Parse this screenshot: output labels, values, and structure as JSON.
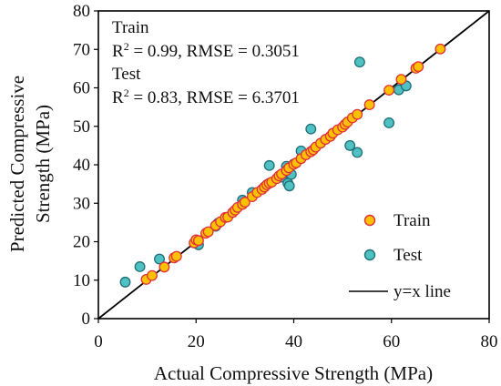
{
  "chart_data": {
    "type": "scatter",
    "xlabel": "Actual Compressive Strength (MPa)",
    "ylabel_lines": [
      "Predicted Compressive",
      "Strength (MPa)"
    ],
    "xlim": [
      0,
      80
    ],
    "ylim": [
      0,
      80
    ],
    "xticks": [
      0,
      20,
      40,
      60,
      80
    ],
    "yticks": [
      0,
      10,
      20,
      30,
      40,
      50,
      60,
      70,
      80
    ],
    "grid": false,
    "legend_position": "bottom-right",
    "annotations": {
      "train_title": "Train",
      "train_r2_label": "R",
      "train_r2_sup": "2",
      "train_stats": " = 0.99, RMSE = 0.3051",
      "test_title": "Test",
      "test_r2_label": "R",
      "test_r2_sup": "2",
      "test_stats": " = 0.83, RMSE = 6.3701"
    },
    "series": [
      {
        "name": "Train",
        "color": "#FFC000",
        "edge_color": "#E0303A",
        "points": [
          [
            9.8,
            10.2
          ],
          [
            11,
            11.2
          ],
          [
            13.5,
            13.4
          ],
          [
            15.5,
            15.8
          ],
          [
            16,
            16.2
          ],
          [
            19.6,
            19.7
          ],
          [
            20,
            20.5
          ],
          [
            20.5,
            20.3
          ],
          [
            22,
            22.2
          ],
          [
            22.5,
            22.6
          ],
          [
            24,
            24.2
          ],
          [
            25,
            25.2
          ],
          [
            26,
            26.3
          ],
          [
            26.5,
            26.4
          ],
          [
            27.5,
            27.6
          ],
          [
            28,
            28.2
          ],
          [
            28.5,
            28.9
          ],
          [
            29.5,
            29.7
          ],
          [
            30,
            30.3
          ],
          [
            31.5,
            31.7
          ],
          [
            32.5,
            32.8
          ],
          [
            33.5,
            33.6
          ],
          [
            34,
            34.2
          ],
          [
            34.5,
            34.8
          ],
          [
            35,
            35.2
          ],
          [
            35.5,
            35.5
          ],
          [
            36.5,
            36.4
          ],
          [
            37,
            37.1
          ],
          [
            37.5,
            37.6
          ],
          [
            38.5,
            38.5
          ],
          [
            39,
            39.2
          ],
          [
            40,
            40.1
          ],
          [
            40.5,
            40.5
          ],
          [
            41.5,
            41.6
          ],
          [
            42.5,
            42.6
          ],
          [
            43.5,
            43.4
          ],
          [
            44,
            43.9
          ],
          [
            44.5,
            44.6
          ],
          [
            45.5,
            45.6
          ],
          [
            46.5,
            46.6
          ],
          [
            47.5,
            47.4
          ],
          [
            48,
            48.2
          ],
          [
            49,
            49.1
          ],
          [
            50,
            49.8
          ],
          [
            50.5,
            50.5
          ],
          [
            51,
            51.1
          ],
          [
            52,
            52.2
          ],
          [
            53,
            53.1
          ],
          [
            55.5,
            55.6
          ],
          [
            59.5,
            59.4
          ],
          [
            62,
            62.2
          ],
          [
            65,
            65.1
          ],
          [
            65.5,
            65.5
          ],
          [
            70,
            70.1
          ]
        ]
      },
      {
        "name": "Test",
        "color": "#4FC1C3",
        "edge_color": "#1F6F78",
        "points": [
          [
            5.5,
            9.5
          ],
          [
            8.5,
            13.5
          ],
          [
            12.5,
            15.5
          ],
          [
            20.5,
            19.2
          ],
          [
            24,
            24
          ],
          [
            24.5,
            24.8
          ],
          [
            29.5,
            30.8
          ],
          [
            31.5,
            32.8
          ],
          [
            35,
            39.8
          ],
          [
            37.5,
            36.8
          ],
          [
            38.5,
            38.2
          ],
          [
            38.5,
            39.6
          ],
          [
            38.8,
            35.2
          ],
          [
            39.1,
            34.5
          ],
          [
            39.5,
            37.5
          ],
          [
            40,
            40.2
          ],
          [
            41.5,
            43.6
          ],
          [
            43.5,
            49.3
          ],
          [
            51.5,
            45
          ],
          [
            53,
            43.2
          ],
          [
            53.5,
            66.7
          ],
          [
            59.5,
            50.9
          ],
          [
            61.5,
            59.5
          ],
          [
            63,
            60.5
          ]
        ]
      }
    ],
    "reference_line": {
      "name": "y=x line",
      "x": [
        0,
        80
      ],
      "y": [
        0,
        80
      ],
      "color": "#000000"
    }
  }
}
